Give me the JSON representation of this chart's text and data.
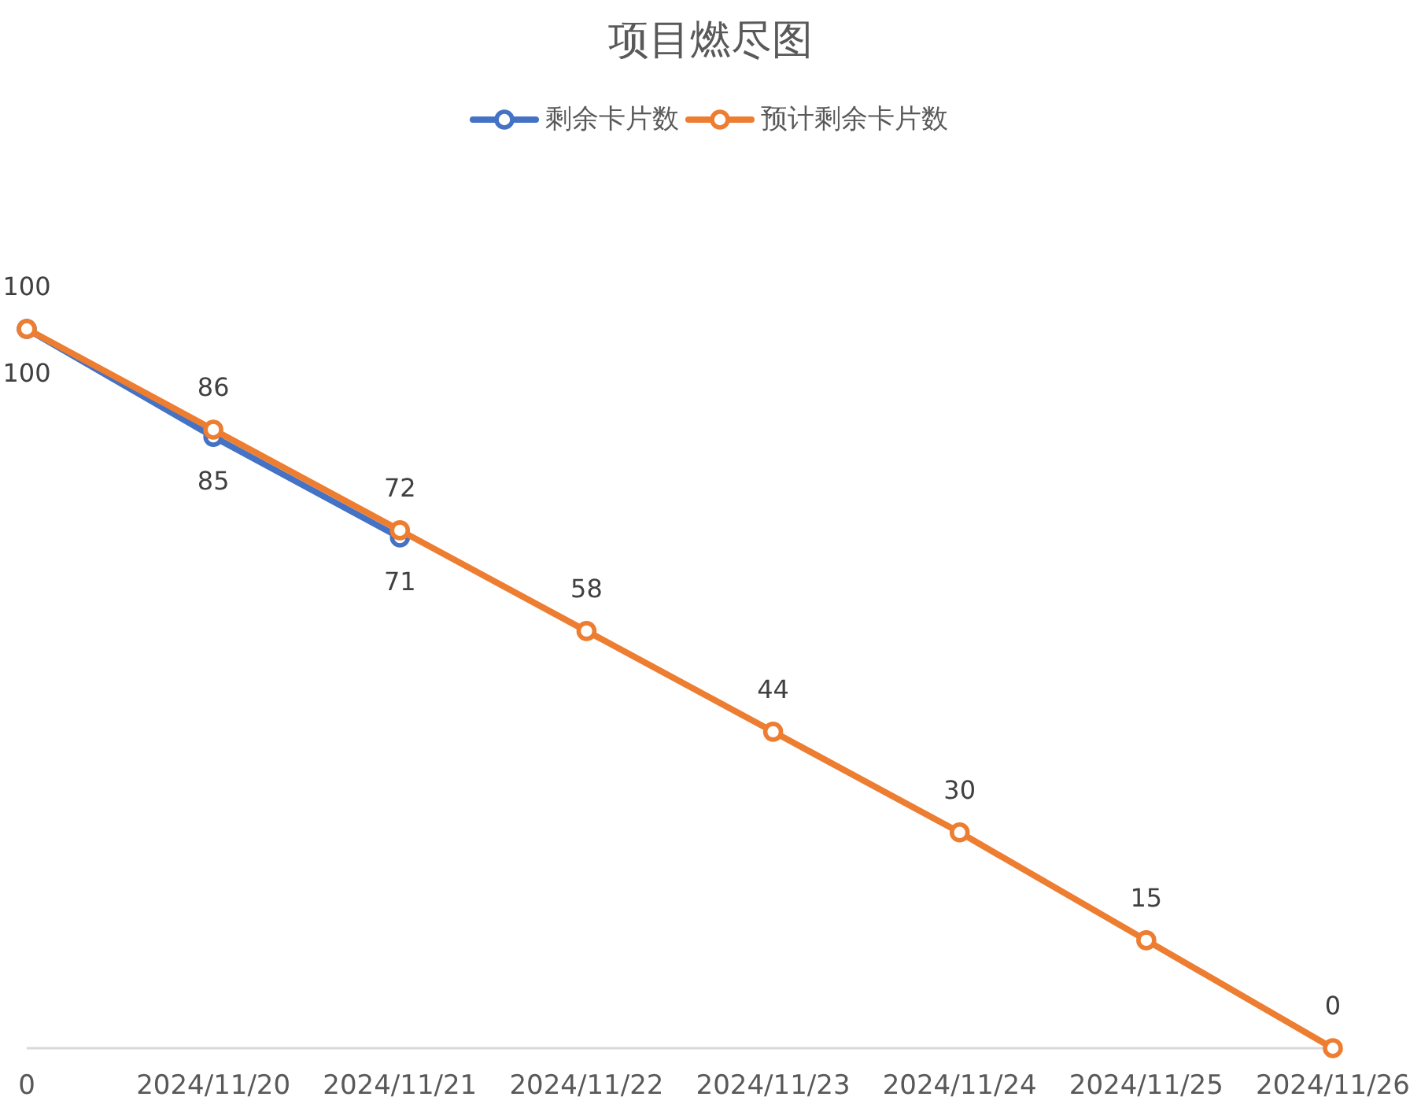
{
  "chart_data": {
    "type": "line",
    "title": "项目燃尽图",
    "categories": [
      "0",
      "2024/11/20",
      "2024/11/21",
      "2024/11/22",
      "2024/11/23",
      "2024/11/24",
      "2024/11/25",
      "2024/11/26"
    ],
    "series": [
      {
        "name": "剩余卡片数",
        "color": "#4472c4",
        "values": [
          100,
          85,
          71,
          null,
          null,
          null,
          null,
          null
        ]
      },
      {
        "name": "预计剩余卡片数",
        "color": "#ed7d31",
        "values": [
          100,
          86,
          72,
          58,
          44,
          30,
          15,
          0
        ]
      }
    ],
    "data_labels": true,
    "legend": "top",
    "marker": "circle"
  }
}
